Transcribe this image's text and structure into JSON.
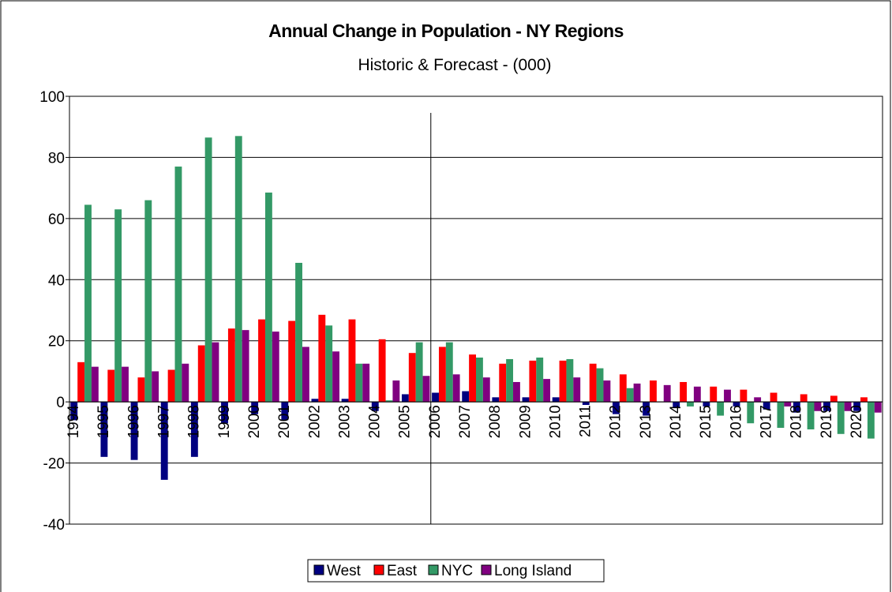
{
  "chart_data": {
    "type": "bar",
    "title": "Annual Change in Population - NY Regions",
    "subtitle": "Historic & Forecast  - (000)",
    "categories": [
      "1994",
      "1995",
      "1996",
      "1997",
      "1998",
      "1999",
      "2000",
      "2001",
      "2002",
      "2003",
      "2004",
      "2005",
      "2006",
      "2007",
      "2008",
      "2009",
      "2010",
      "2011",
      "2012",
      "2013",
      "2014",
      "2015",
      "2016",
      "2017",
      "2018",
      "2019",
      "2020"
    ],
    "series": [
      {
        "name": "West",
        "color": "#000080",
        "values": [
          -6,
          -18,
          -19,
          -25.5,
          -18,
          -7,
          -4,
          -6,
          1,
          1,
          -3,
          2.5,
          3,
          3.5,
          1.5,
          1.5,
          1.5,
          -1,
          -4,
          -4.5,
          -2,
          -1.5,
          -1.5,
          -2.5,
          -3.5,
          -3,
          -3
        ]
      },
      {
        "name": "East",
        "color": "#ff0000",
        "values": [
          13,
          10.5,
          8,
          10.5,
          18.5,
          24,
          27,
          26.5,
          28.5,
          27,
          20.5,
          16,
          18,
          15.5,
          12.5,
          13.5,
          13.5,
          12.5,
          9,
          7,
          6.5,
          5,
          4,
          3,
          2.5,
          2,
          1.5
        ]
      },
      {
        "name": "NYC",
        "color": "#339966",
        "values": [
          64.5,
          63,
          66,
          77,
          86.5,
          87,
          68.5,
          45.5,
          25,
          12.5,
          0.5,
          19.5,
          19.5,
          14.5,
          14,
          14.5,
          14,
          11,
          4.5,
          0,
          -1.5,
          -4.5,
          -7,
          -8.5,
          -9,
          -10.5,
          -12
        ]
      },
      {
        "name": "Long Island",
        "color": "#800080",
        "values": [
          11.5,
          11.5,
          10,
          12.5,
          19.5,
          23.5,
          23,
          18,
          16.5,
          12.5,
          7,
          8.5,
          9,
          8,
          6.5,
          7.5,
          8,
          7,
          6,
          5.5,
          5,
          4,
          1.5,
          -1.5,
          -3,
          -3,
          -3.5
        ]
      }
    ],
    "ylim": [
      -40,
      100
    ],
    "yticks": [
      -40,
      -20,
      0,
      20,
      40,
      60,
      80,
      100
    ],
    "grid": true,
    "legend": "bottom"
  }
}
